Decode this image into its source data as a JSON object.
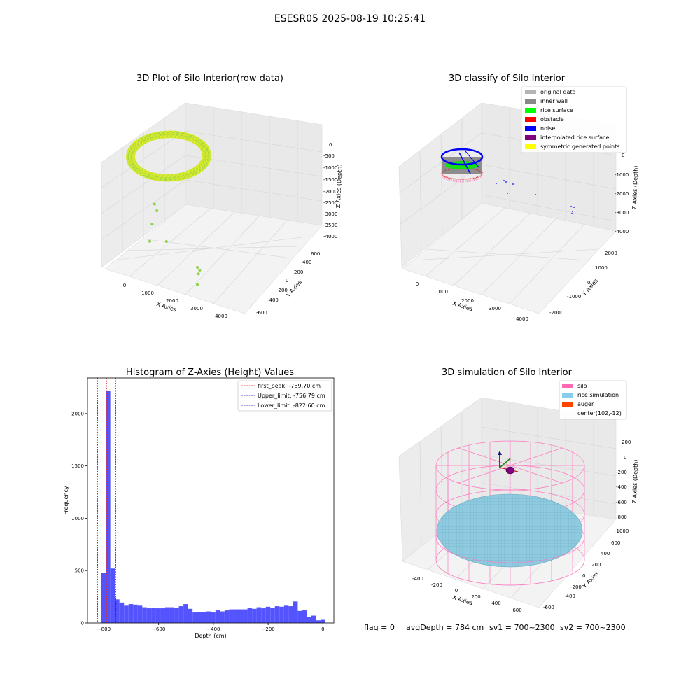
{
  "suptitle": "ESESR05 2025-08-19 10:25:41",
  "footer": {
    "flag": "flag = 0",
    "avg_depth": "avgDepth = 784 cm",
    "sv1": "sv1 = 700~2300",
    "sv2": "sv2 = 700~2300"
  },
  "colors": {
    "raw_points": "#8ed24a",
    "hist_bars": "#4b4bff",
    "first_peak_line": "#e03030",
    "limit_lines": "#1515b0",
    "silo_wire": "#ff6fb4",
    "rice_simulation": "#87c6dd",
    "pane": "#f2f2f2",
    "grid": "#d8d8d8"
  },
  "chart_data": [
    {
      "type": "scatter",
      "title": "3D Plot of Silo Interior(row data)",
      "xlabel": "X Axies",
      "ylabel": "Y Axies",
      "zlabel": "Z Axies (Depth)",
      "x_ticks": [
        "0",
        "1000",
        "2000",
        "3000",
        "4000"
      ],
      "y_ticks": [
        "-600",
        "-400",
        "-200",
        "0",
        "200",
        "400",
        "600"
      ],
      "z_ticks": [
        "-4000",
        "-3500",
        "-3000",
        "-2500",
        "-2000",
        "-1500",
        "-1000",
        "-500",
        "0"
      ],
      "xlim": [
        -700,
        4700
      ],
      "ylim": [
        -650,
        650
      ],
      "zlim": [
        -4100,
        100
      ],
      "ring": {
        "center_x": 0,
        "center_y": 0,
        "radius": 600,
        "depth": -800
      },
      "outliers": [
        {
          "x": 1200,
          "y": 200,
          "z": -1500
        },
        {
          "x": 1300,
          "y": 150,
          "z": -1700
        },
        {
          "x": 1100,
          "y": -100,
          "z": -2000
        },
        {
          "x": 1700,
          "y": -200,
          "z": -2500
        },
        {
          "x": 1000,
          "y": -300,
          "z": -2500
        },
        {
          "x": 3000,
          "y": -500,
          "z": -3000
        },
        {
          "x": 3100,
          "y": -500,
          "z": -3100
        },
        {
          "x": 3050,
          "y": -550,
          "z": -3200
        },
        {
          "x": 3000,
          "y": -600,
          "z": -3600
        }
      ]
    },
    {
      "type": "scatter",
      "title": "3D classify of Silo Interior",
      "xlabel": "X Axies",
      "ylabel": "Y Axies",
      "zlabel": "Z Axies (Depth)",
      "x_ticks": [
        "0",
        "1000",
        "2000",
        "3000",
        "4000"
      ],
      "y_ticks": [
        "-2000",
        "-1000",
        "0",
        "1000",
        "2000"
      ],
      "z_ticks": [
        "-4000",
        "-3000",
        "-2000",
        "-1000",
        "0"
      ],
      "legend": [
        {
          "label": "original data",
          "color": "#b4b4b4"
        },
        {
          "label": "inner wall",
          "color": "#888888"
        },
        {
          "label": "rice surface",
          "color": "#00ff00"
        },
        {
          "label": "obstacle",
          "color": "#ff0000"
        },
        {
          "label": "noise",
          "color": "#0000ff"
        },
        {
          "label": "interpolated rice surface",
          "color": "#800080"
        },
        {
          "label": "symmetric generated points",
          "color": "#ffff00"
        }
      ]
    },
    {
      "type": "bar",
      "title": "Histogram of Z-Axies (Height) Values",
      "xlabel": "Depth (cm)",
      "ylabel": "Frequency",
      "xlim": [
        -860,
        40
      ],
      "ylim": [
        0,
        2340
      ],
      "x_ticks": [
        -800,
        -600,
        -400,
        -200,
        0
      ],
      "y_ticks": [
        0,
        500,
        1000,
        1500,
        2000
      ],
      "bin_width": 16.7,
      "bins": [
        {
          "x": -810,
          "v": 480
        },
        {
          "x": -793.3,
          "v": 2220
        },
        {
          "x": -776.6,
          "v": 520
        },
        {
          "x": -759.9,
          "v": 225
        },
        {
          "x": -743.2,
          "v": 195
        },
        {
          "x": -726.5,
          "v": 165
        },
        {
          "x": -709.8,
          "v": 180
        },
        {
          "x": -693.1,
          "v": 175
        },
        {
          "x": -676.4,
          "v": 165
        },
        {
          "x": -659.7,
          "v": 150
        },
        {
          "x": -643,
          "v": 140
        },
        {
          "x": -626.3,
          "v": 145
        },
        {
          "x": -609.6,
          "v": 140
        },
        {
          "x": -592.9,
          "v": 140
        },
        {
          "x": -576.2,
          "v": 150
        },
        {
          "x": -559.5,
          "v": 150
        },
        {
          "x": -542.8,
          "v": 145
        },
        {
          "x": -526.1,
          "v": 160
        },
        {
          "x": -509.4,
          "v": 180
        },
        {
          "x": -492.7,
          "v": 135
        },
        {
          "x": -476,
          "v": 100
        },
        {
          "x": -459.3,
          "v": 105
        },
        {
          "x": -442.6,
          "v": 105
        },
        {
          "x": -425.9,
          "v": 110
        },
        {
          "x": -409.2,
          "v": 100
        },
        {
          "x": -392.5,
          "v": 120
        },
        {
          "x": -375.8,
          "v": 110
        },
        {
          "x": -359.1,
          "v": 120
        },
        {
          "x": -342.4,
          "v": 130
        },
        {
          "x": -325.7,
          "v": 130
        },
        {
          "x": -309,
          "v": 130
        },
        {
          "x": -292.3,
          "v": 130
        },
        {
          "x": -275.6,
          "v": 145
        },
        {
          "x": -258.9,
          "v": 135
        },
        {
          "x": -242.2,
          "v": 150
        },
        {
          "x": -225.5,
          "v": 140
        },
        {
          "x": -208.8,
          "v": 155
        },
        {
          "x": -192.1,
          "v": 145
        },
        {
          "x": -175.4,
          "v": 160
        },
        {
          "x": -158.7,
          "v": 155
        },
        {
          "x": -142,
          "v": 165
        },
        {
          "x": -125.3,
          "v": 160
        },
        {
          "x": -108.6,
          "v": 205
        },
        {
          "x": -91.9,
          "v": 115
        },
        {
          "x": -75.2,
          "v": 120
        },
        {
          "x": -58.5,
          "v": 60
        },
        {
          "x": -41.8,
          "v": 70
        },
        {
          "x": -25.1,
          "v": 25
        },
        {
          "x": -8.4,
          "v": 30
        }
      ],
      "vlines": [
        {
          "key": "first_peak",
          "x": -789.7,
          "color": "#e03030",
          "label": "first_peak: -789.70 cm"
        },
        {
          "key": "upper_limit",
          "x": -756.79,
          "color": "#1515b0",
          "label": "Upper_limit: -756.79 cm"
        },
        {
          "key": "lower_limit",
          "x": -822.6,
          "color": "#1515b0",
          "label": "Lower_limit: -822.60 cm"
        }
      ]
    },
    {
      "type": "scatter",
      "title": "3D simulation of Silo Interior",
      "xlabel": "X Axies",
      "ylabel": "Y Axies",
      "zlabel": "Z Axies (Depth)",
      "x_ticks": [
        "-400",
        "-200",
        "0",
        "200",
        "400",
        "600"
      ],
      "y_ticks": [
        "-600",
        "-400",
        "-200",
        "0",
        "200",
        "400",
        "600"
      ],
      "z_ticks": [
        "-1000",
        "-800",
        "-600",
        "-400",
        "-200",
        "0",
        "200"
      ],
      "legend": [
        {
          "label": "silo",
          "color": "#ff69b4"
        },
        {
          "label": "rice simulation",
          "color": "#87ceeb"
        },
        {
          "label": "auger",
          "color": "#ff4500"
        },
        {
          "label": "center(102,-12)",
          "color": ""
        }
      ]
    }
  ]
}
